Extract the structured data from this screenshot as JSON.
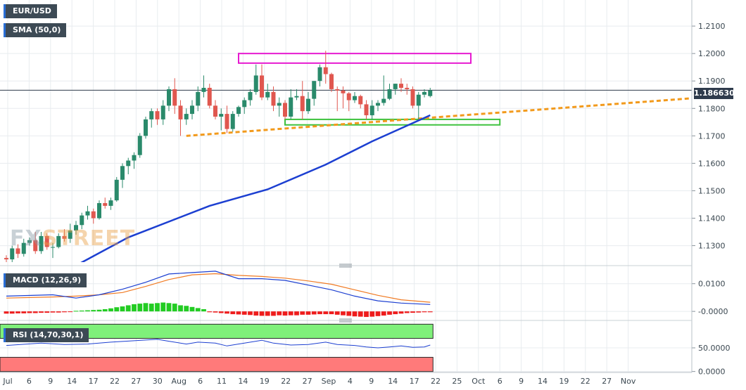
{
  "labels": {
    "symbol": "EUR/USD",
    "sma": "SMA (50,0)",
    "macd": "MACD (12,26,9)",
    "rsi": "RSI (14,70,30,1)",
    "watermark_a": "FX",
    "watermark_b": "STREET",
    "last_price": "1.186630"
  },
  "colors": {
    "up": "#2a8a6b",
    "down": "#e0574f",
    "sma": "#1c3fd1",
    "trendline": "#f29a1c",
    "resistance_box": "#e619d0",
    "support_box": "#3ec23e",
    "macd_line": "#1c3fd1",
    "signal_line": "#f07a22",
    "hist_pos": "#22cc22",
    "hist_neg": "#ee1c1c",
    "rsi_line": "#1c3fd1",
    "rsi_overbought": "#7ff07a",
    "rsi_oversold": "#ff7a7a",
    "last_price_line": "#2f3b4c"
  },
  "chart_data": {
    "type": "candlestick",
    "x_ticks": [
      "Jul",
      "6",
      "9",
      "14",
      "17",
      "22",
      "27",
      "30",
      "Aug",
      "6",
      "11",
      "14",
      "19",
      "22",
      "27",
      "Sep",
      "4",
      "9",
      "14",
      "17",
      "22",
      "25",
      "Oct",
      "6",
      "9",
      "14",
      "19",
      "22",
      "27",
      "Nov"
    ],
    "price_axis": {
      "ticks": [
        "1.1300",
        "1.1400",
        "1.1500",
        "1.1600",
        "1.1700",
        "1.1800",
        "1.1900",
        "1.2000",
        "1.2100"
      ],
      "range": [
        1.124,
        1.2195
      ],
      "last_price": 1.18663
    },
    "candles": [
      [
        1.1255,
        1.1265,
        1.1235,
        1.125
      ],
      [
        1.125,
        1.13,
        1.1235,
        1.129
      ],
      [
        1.129,
        1.1305,
        1.1255,
        1.127
      ],
      [
        1.127,
        1.1325,
        1.126,
        1.131
      ],
      [
        1.131,
        1.133,
        1.13,
        1.132
      ],
      [
        1.132,
        1.135,
        1.127,
        1.128
      ],
      [
        1.128,
        1.135,
        1.127,
        1.1335
      ],
      [
        1.1335,
        1.1345,
        1.1285,
        1.1295
      ],
      [
        1.1295,
        1.131,
        1.1255,
        1.1295
      ],
      [
        1.1295,
        1.1345,
        1.129,
        1.1335
      ],
      [
        1.1335,
        1.136,
        1.1315,
        1.1325
      ],
      [
        1.1325,
        1.138,
        1.131,
        1.1355
      ],
      [
        1.1355,
        1.139,
        1.134,
        1.1375
      ],
      [
        1.1375,
        1.142,
        1.136,
        1.141
      ],
      [
        1.141,
        1.1445,
        1.1395,
        1.1425
      ],
      [
        1.1425,
        1.1435,
        1.138,
        1.14
      ],
      [
        1.14,
        1.1465,
        1.1395,
        1.1455
      ],
      [
        1.1455,
        1.1475,
        1.1435,
        1.1445
      ],
      [
        1.1445,
        1.1475,
        1.143,
        1.1465
      ],
      [
        1.1465,
        1.155,
        1.146,
        1.154
      ],
      [
        1.154,
        1.16,
        1.151,
        1.159
      ],
      [
        1.159,
        1.162,
        1.156,
        1.161
      ],
      [
        1.161,
        1.164,
        1.158,
        1.163
      ],
      [
        1.163,
        1.171,
        1.162,
        1.17
      ],
      [
        1.17,
        1.177,
        1.169,
        1.176
      ],
      [
        1.176,
        1.18,
        1.173,
        1.179
      ],
      [
        1.179,
        1.18,
        1.174,
        1.176
      ],
      [
        1.176,
        1.183,
        1.174,
        1.181
      ],
      [
        1.181,
        1.188,
        1.179,
        1.187
      ],
      [
        1.187,
        1.191,
        1.178,
        1.181
      ],
      [
        1.181,
        1.183,
        1.17,
        1.176
      ],
      [
        1.176,
        1.18,
        1.174,
        1.178
      ],
      [
        1.178,
        1.183,
        1.176,
        1.181
      ],
      [
        1.181,
        1.188,
        1.179,
        1.186
      ],
      [
        1.186,
        1.192,
        1.184,
        1.1875
      ],
      [
        1.1875,
        1.189,
        1.18,
        1.181
      ],
      [
        1.181,
        1.183,
        1.176,
        1.177
      ],
      [
        1.177,
        1.18,
        1.172,
        1.178
      ],
      [
        1.178,
        1.181,
        1.171,
        1.1725
      ],
      [
        1.1725,
        1.179,
        1.1715,
        1.178
      ],
      [
        1.178,
        1.181,
        1.177,
        1.1805
      ],
      [
        1.1805,
        1.184,
        1.178,
        1.183
      ],
      [
        1.183,
        1.187,
        1.181,
        1.186
      ],
      [
        1.186,
        1.196,
        1.185,
        1.192
      ],
      [
        1.192,
        1.196,
        1.183,
        1.184
      ],
      [
        1.184,
        1.189,
        1.183,
        1.186
      ],
      [
        1.186,
        1.188,
        1.179,
        1.181
      ],
      [
        1.181,
        1.184,
        1.177,
        1.182
      ],
      [
        1.182,
        1.183,
        1.176,
        1.177
      ],
      [
        1.177,
        1.187,
        1.176,
        1.184
      ],
      [
        1.184,
        1.187,
        1.183,
        1.1845
      ],
      [
        1.1845,
        1.19,
        1.176,
        1.179
      ],
      [
        1.179,
        1.186,
        1.178,
        1.1835
      ],
      [
        1.1835,
        1.19,
        1.181,
        1.19
      ],
      [
        1.19,
        1.196,
        1.188,
        1.195
      ],
      [
        1.195,
        1.201,
        1.189,
        1.1925
      ],
      [
        1.1925,
        1.193,
        1.186,
        1.187
      ],
      [
        1.187,
        1.188,
        1.179,
        1.1865
      ],
      [
        1.1865,
        1.188,
        1.18,
        1.1855
      ],
      [
        1.1855,
        1.186,
        1.179,
        1.183
      ],
      [
        1.183,
        1.186,
        1.182,
        1.1845
      ],
      [
        1.1845,
        1.185,
        1.18,
        1.1815
      ],
      [
        1.1815,
        1.183,
        1.176,
        1.1775
      ],
      [
        1.1775,
        1.183,
        1.176,
        1.181
      ],
      [
        1.181,
        1.183,
        1.179,
        1.182
      ],
      [
        1.182,
        1.192,
        1.181,
        1.1835
      ],
      [
        1.1835,
        1.189,
        1.183,
        1.187
      ],
      [
        1.187,
        1.189,
        1.185,
        1.189
      ],
      [
        1.189,
        1.191,
        1.186,
        1.1875
      ],
      [
        1.1875,
        1.189,
        1.185,
        1.187
      ],
      [
        1.187,
        1.188,
        1.18,
        1.181
      ],
      [
        1.181,
        1.186,
        1.176,
        1.185
      ],
      [
        1.185,
        1.187,
        1.184,
        1.186
      ],
      [
        1.1845,
        1.1875,
        1.184,
        1.1866
      ]
    ],
    "sma_50": [
      [
        0,
        1.1135
      ],
      [
        10,
        1.1205
      ],
      [
        21,
        1.133
      ],
      [
        35,
        1.1445
      ],
      [
        45,
        1.1505
      ],
      [
        55,
        1.1595
      ],
      [
        63,
        1.168
      ],
      [
        73,
        1.1775
      ]
    ],
    "trendline": {
      "from": [
        31,
        1.17
      ],
      "to": [
        120,
        1.184
      ]
    },
    "resistance_box": {
      "from": [
        40,
        1.1965
      ],
      "to": [
        80,
        1.2
      ]
    },
    "support_box": {
      "from": [
        48,
        1.174
      ],
      "to": [
        85,
        1.176
      ]
    },
    "macd": {
      "ticks": [
        "0.0100",
        "-0.0000"
      ],
      "range": [
        -0.0025,
        0.0155
      ],
      "macd": [
        [
          0,
          0.0055
        ],
        [
          8,
          0.006
        ],
        [
          12,
          0.0048
        ],
        [
          16,
          0.006
        ],
        [
          20,
          0.008
        ],
        [
          24,
          0.0105
        ],
        [
          28,
          0.0135
        ],
        [
          32,
          0.014
        ],
        [
          36,
          0.0145
        ],
        [
          40,
          0.0118
        ],
        [
          44,
          0.0118
        ],
        [
          48,
          0.0112
        ],
        [
          52,
          0.0095
        ],
        [
          56,
          0.0078
        ],
        [
          60,
          0.0055
        ],
        [
          64,
          0.0038
        ],
        [
          68,
          0.003
        ],
        [
          73,
          0.0025
        ]
      ],
      "signal": [
        [
          0,
          0.0048
        ],
        [
          8,
          0.0052
        ],
        [
          12,
          0.0055
        ],
        [
          16,
          0.006
        ],
        [
          20,
          0.0068
        ],
        [
          24,
          0.009
        ],
        [
          28,
          0.0115
        ],
        [
          32,
          0.0132
        ],
        [
          36,
          0.0136
        ],
        [
          40,
          0.013
        ],
        [
          44,
          0.0126
        ],
        [
          48,
          0.012
        ],
        [
          52,
          0.011
        ],
        [
          56,
          0.0098
        ],
        [
          60,
          0.0078
        ],
        [
          64,
          0.0058
        ],
        [
          68,
          0.0042
        ],
        [
          73,
          0.0033
        ]
      ],
      "histogram": [
        -0.0008,
        -0.0008,
        -0.0007,
        -0.0007,
        -0.0006,
        -0.0006,
        -0.0005,
        -0.0005,
        -0.0004,
        -0.0004,
        -0.0003,
        -0.0002,
        0.0002,
        0.0003,
        0.0004,
        0.0005,
        0.0006,
        0.0008,
        0.0011,
        0.0015,
        0.0018,
        0.0022,
        0.0026,
        0.0028,
        0.003,
        0.0028,
        0.003,
        0.0032,
        0.003,
        0.0028,
        0.0022,
        0.002,
        0.0016,
        0.0012,
        0.0008,
        -0.0003,
        -0.0004,
        -0.0006,
        -0.0008,
        -0.001,
        -0.0011,
        -0.0012,
        -0.0013,
        -0.0015,
        -0.0016,
        -0.0016,
        -0.0016,
        -0.0014,
        -0.0015,
        -0.0014,
        -0.0014,
        -0.0012,
        -0.0012,
        -0.0011,
        -0.001,
        -0.001,
        -0.001,
        -0.0012,
        -0.0014,
        -0.0016,
        -0.0018,
        -0.0019,
        -0.002,
        -0.0019,
        -0.0017,
        -0.0015,
        -0.0012,
        -0.001,
        -0.0008,
        -0.0006,
        -0.0005,
        -0.0004,
        -0.0003,
        -0.0003
      ]
    },
    "rsi": {
      "ticks": [
        "50.0000",
        "0.0000"
      ],
      "range": [
        -2,
        102
      ],
      "overbought": 70,
      "oversold": 30,
      "values": [
        [
          0,
          55
        ],
        [
          6,
          60
        ],
        [
          10,
          57
        ],
        [
          14,
          58
        ],
        [
          18,
          62
        ],
        [
          22,
          65
        ],
        [
          26,
          68
        ],
        [
          28,
          64
        ],
        [
          31,
          58
        ],
        [
          33,
          62
        ],
        [
          36,
          60
        ],
        [
          38,
          54
        ],
        [
          41,
          60
        ],
        [
          44,
          66
        ],
        [
          46,
          60
        ],
        [
          49,
          56
        ],
        [
          52,
          57
        ],
        [
          55,
          62
        ],
        [
          57,
          57
        ],
        [
          60,
          55
        ],
        [
          62,
          52
        ],
        [
          64,
          50
        ],
        [
          66,
          52
        ],
        [
          68,
          54
        ],
        [
          70,
          51
        ],
        [
          72,
          52
        ],
        [
          73,
          56
        ]
      ]
    }
  }
}
